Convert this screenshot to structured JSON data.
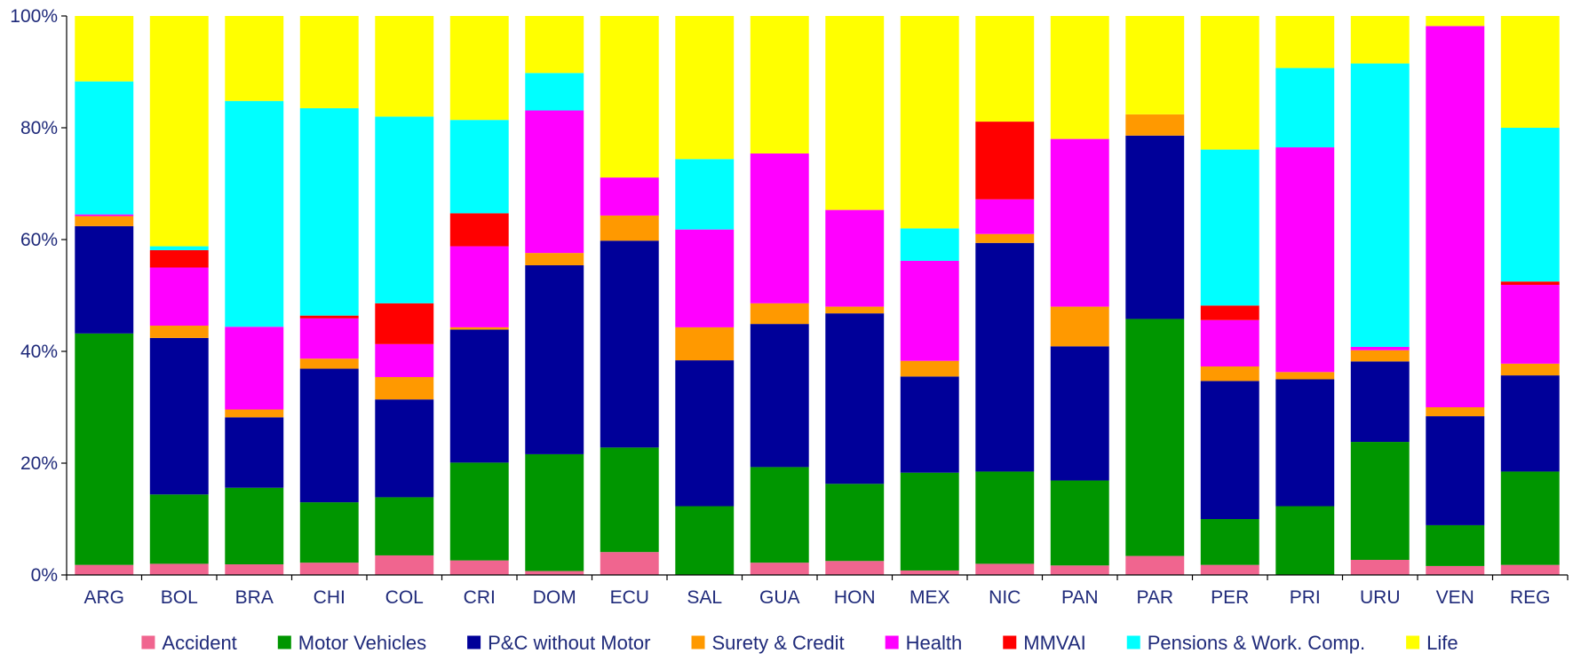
{
  "chart_data": {
    "type": "bar",
    "stacked": true,
    "percent_stacked": true,
    "title": "",
    "xlabel": "",
    "ylabel": "",
    "ylim": [
      0,
      100
    ],
    "y_tick_labels": [
      "0%",
      "20%",
      "40%",
      "60%",
      "80%",
      "100%"
    ],
    "grid": false,
    "legend_position": "bottom",
    "categories": [
      "ARG",
      "BOL",
      "BRA",
      "CHI",
      "COL",
      "CRI",
      "DOM",
      "ECU",
      "SAL",
      "GUA",
      "HON",
      "MEX",
      "NIC",
      "PAN",
      "PAR",
      "PER",
      "PRI",
      "URU",
      "VEN",
      "REG"
    ],
    "series": [
      {
        "name": "Accident",
        "color": "#f0658f",
        "values": [
          1.8,
          2.0,
          1.9,
          2.2,
          3.5,
          2.6,
          0.7,
          4.1,
          0.0,
          2.2,
          2.5,
          0.8,
          2.0,
          1.7,
          3.4,
          1.8,
          0.0,
          2.7,
          1.6,
          1.8
        ]
      },
      {
        "name": "Motor Vehicles",
        "color": "#009600",
        "values": [
          41.4,
          12.4,
          13.7,
          10.8,
          10.4,
          17.5,
          20.9,
          18.7,
          12.3,
          17.1,
          13.8,
          17.5,
          16.5,
          15.2,
          42.4,
          8.2,
          12.3,
          21.1,
          7.3,
          16.7
        ]
      },
      {
        "name": "P&C without Motor",
        "color": "#000099",
        "values": [
          19.2,
          28.0,
          12.6,
          23.9,
          17.5,
          23.8,
          33.8,
          37.0,
          26.1,
          25.6,
          30.5,
          17.2,
          40.9,
          24.0,
          32.8,
          24.7,
          22.7,
          14.4,
          19.5,
          17.2
        ]
      },
      {
        "name": "Surety & Credit",
        "color": "#ff9900",
        "values": [
          1.8,
          2.2,
          1.4,
          1.8,
          4.0,
          0.4,
          2.2,
          4.5,
          5.9,
          3.7,
          1.2,
          2.8,
          1.6,
          7.1,
          3.8,
          2.6,
          1.3,
          2.0,
          1.6,
          2.1
        ]
      },
      {
        "name": "Health",
        "color": "#ff00ff",
        "values": [
          0.3,
          10.4,
          14.8,
          7.2,
          5.9,
          14.5,
          25.5,
          6.8,
          17.5,
          26.8,
          17.3,
          17.9,
          6.2,
          30.0,
          0.0,
          8.3,
          40.2,
          0.6,
          68.2,
          14.1
        ]
      },
      {
        "name": "MMVAI",
        "color": "#ff0000",
        "values": [
          0.0,
          3.1,
          0.0,
          0.5,
          7.3,
          5.9,
          0.0,
          0.0,
          0.0,
          0.0,
          0.0,
          0.0,
          13.9,
          0.0,
          0.0,
          2.6,
          0.0,
          0.0,
          0.0,
          0.6
        ]
      },
      {
        "name": "Pensions & Work. Comp.",
        "color": "#00ffff",
        "values": [
          23.8,
          0.7,
          40.4,
          37.1,
          33.4,
          16.7,
          6.7,
          0.0,
          12.6,
          0.0,
          0.0,
          5.8,
          0.0,
          0.0,
          0.0,
          27.9,
          14.2,
          50.7,
          0.0,
          27.5
        ]
      },
      {
        "name": "Life",
        "color": "#ffff00",
        "values": [
          11.7,
          41.2,
          15.2,
          16.5,
          18.0,
          18.6,
          10.2,
          28.9,
          25.6,
          24.6,
          34.7,
          38.0,
          18.9,
          22.0,
          17.6,
          23.9,
          9.3,
          8.5,
          1.8,
          20.0
        ]
      }
    ]
  }
}
